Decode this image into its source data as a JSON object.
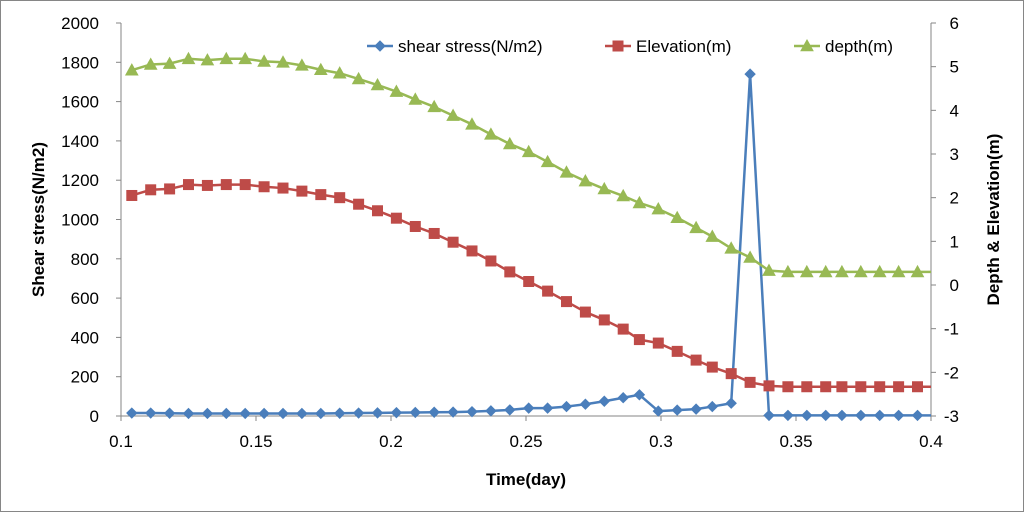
{
  "chart_data": {
    "type": "line",
    "title": "",
    "xlabel": "Time(day)",
    "ylabel": "Shear stress(N/m2)",
    "y2label": "Depth & Elevation(m)",
    "xlim": [
      0.1,
      0.4
    ],
    "ylim": [
      0,
      2000
    ],
    "y2lim": [
      -3,
      6
    ],
    "x_ticks": [
      "0.1",
      "0.15",
      "0.2",
      "0.25",
      "0.3",
      "0.35",
      "0.4"
    ],
    "y_ticks": [
      "0",
      "200",
      "400",
      "600",
      "800",
      "1000",
      "1200",
      "1400",
      "1600",
      "1800",
      "2000"
    ],
    "y2_ticks": [
      "-3",
      "-2",
      "-1",
      "0",
      "1",
      "2",
      "3",
      "4",
      "5",
      "6"
    ],
    "legend_position": "top",
    "grid": false,
    "x": [
      0.104,
      0.111,
      0.118,
      0.125,
      0.132,
      0.139,
      0.146,
      0.153,
      0.16,
      0.167,
      0.174,
      0.181,
      0.188,
      0.195,
      0.202,
      0.209,
      0.216,
      0.223,
      0.23,
      0.237,
      0.244,
      0.251,
      0.258,
      0.265,
      0.272,
      0.279,
      0.286,
      0.292,
      0.299,
      0.306,
      0.313,
      0.319,
      0.326,
      0.333,
      0.34,
      0.347,
      0.354,
      0.361,
      0.367,
      0.374,
      0.381,
      0.388,
      0.395
    ],
    "series": [
      {
        "name": "shear stress(N/m2)",
        "axis": "left",
        "color": "#4a7ebb",
        "marker": "diamond",
        "values": [
          15,
          15,
          14,
          13,
          13,
          13,
          13,
          13,
          13,
          13,
          13,
          14,
          15,
          16,
          17,
          18,
          19,
          20,
          22,
          26,
          31,
          40,
          40,
          48,
          60,
          75,
          93,
          108,
          25,
          30,
          35,
          48,
          65,
          1740,
          3,
          3,
          3,
          3,
          3,
          3,
          3,
          3,
          3
        ]
      },
      {
        "name": "Elevation(m)",
        "axis": "right",
        "color": "#be4b48",
        "marker": "square",
        "values": [
          2.05,
          2.18,
          2.2,
          2.3,
          2.28,
          2.3,
          2.3,
          2.25,
          2.22,
          2.15,
          2.07,
          2.0,
          1.85,
          1.7,
          1.53,
          1.34,
          1.18,
          0.98,
          0.78,
          0.55,
          0.3,
          0.08,
          -0.14,
          -0.38,
          -0.62,
          -0.8,
          -1.01,
          -1.25,
          -1.33,
          -1.52,
          -1.72,
          -1.88,
          -2.03,
          -2.23,
          -2.31,
          -2.33,
          -2.33,
          -2.33,
          -2.33,
          -2.33,
          -2.33,
          -2.33,
          -2.33
        ]
      },
      {
        "name": "depth(m)",
        "axis": "right",
        "color": "#98b954",
        "marker": "triangle",
        "values": [
          4.92,
          5.05,
          5.07,
          5.18,
          5.15,
          5.18,
          5.18,
          5.12,
          5.1,
          5.03,
          4.93,
          4.85,
          4.72,
          4.58,
          4.43,
          4.25,
          4.08,
          3.88,
          3.68,
          3.45,
          3.23,
          3.05,
          2.82,
          2.58,
          2.38,
          2.2,
          2.04,
          1.88,
          1.74,
          1.54,
          1.31,
          1.11,
          0.84,
          0.63,
          0.33,
          0.3,
          0.3,
          0.3,
          0.3,
          0.3,
          0.3,
          0.3,
          0.3
        ]
      }
    ]
  }
}
